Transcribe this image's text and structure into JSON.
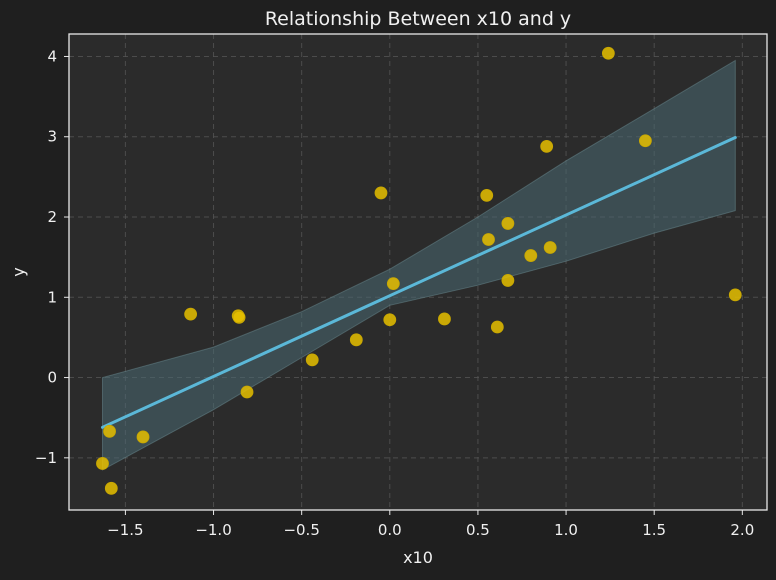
{
  "chart_data": {
    "type": "scatter",
    "title": "Relationship Between x10 and y",
    "xlabel": "x10",
    "ylabel": "y",
    "xlim": [
      -1.82,
      2.14
    ],
    "ylim": [
      -1.65,
      4.28
    ],
    "grid": true,
    "x_ticks": [
      -1.5,
      -1.0,
      -0.5,
      0.0,
      0.5,
      1.0,
      1.5,
      2.0
    ],
    "x_tick_labels": [
      "−1.5",
      "−1.0",
      "−0.5",
      "0.0",
      "0.5",
      "1.0",
      "1.5",
      "2.0"
    ],
    "y_ticks": [
      -1,
      0,
      1,
      2,
      3,
      4
    ],
    "y_tick_labels": [
      "−1",
      "0",
      "1",
      "2",
      "3",
      "4"
    ],
    "colors": {
      "background": "#1f1f1f",
      "plot_area": "#2b2b2b",
      "points": "#e6c000",
      "regression_line": "#5bb8d8",
      "confidence_band": "#4a6a72",
      "grid": "#555555",
      "text": "#f0f0f0"
    },
    "series": [
      {
        "type": "scatter",
        "points": [
          {
            "x": -1.63,
            "y": -1.07
          },
          {
            "x": -1.59,
            "y": -0.67
          },
          {
            "x": -1.58,
            "y": -1.38
          },
          {
            "x": -1.4,
            "y": -0.74
          },
          {
            "x": -1.13,
            "y": 0.79
          },
          {
            "x": -0.86,
            "y": 0.77
          },
          {
            "x": -0.855,
            "y": 0.75
          },
          {
            "x": -0.81,
            "y": -0.18
          },
          {
            "x": -0.44,
            "y": 0.22
          },
          {
            "x": -0.19,
            "y": 0.47
          },
          {
            "x": -0.05,
            "y": 2.3
          },
          {
            "x": 0.0,
            "y": 0.72
          },
          {
            "x": 0.02,
            "y": 1.17
          },
          {
            "x": 0.31,
            "y": 0.73
          },
          {
            "x": 0.55,
            "y": 2.27
          },
          {
            "x": 0.56,
            "y": 1.72
          },
          {
            "x": 0.61,
            "y": 0.63
          },
          {
            "x": 0.67,
            "y": 1.92
          },
          {
            "x": 0.67,
            "y": 1.21
          },
          {
            "x": 0.8,
            "y": 1.52
          },
          {
            "x": 0.89,
            "y": 2.88
          },
          {
            "x": 0.91,
            "y": 1.62
          },
          {
            "x": 1.24,
            "y": 4.04
          },
          {
            "x": 1.45,
            "y": 2.95
          },
          {
            "x": 1.96,
            "y": 1.03
          }
        ]
      },
      {
        "type": "line",
        "x": [
          -1.63,
          1.96
        ],
        "y": [
          -0.62,
          2.99
        ]
      },
      {
        "type": "area",
        "x": [
          -1.63,
          -1.0,
          -0.5,
          0.0,
          0.5,
          1.0,
          1.5,
          1.96
        ],
        "upper": [
          0.0,
          0.38,
          0.82,
          1.35,
          2.0,
          2.7,
          3.35,
          3.95
        ],
        "lower": [
          -1.15,
          -0.4,
          0.25,
          0.9,
          1.15,
          1.45,
          1.8,
          2.08
        ]
      }
    ]
  }
}
